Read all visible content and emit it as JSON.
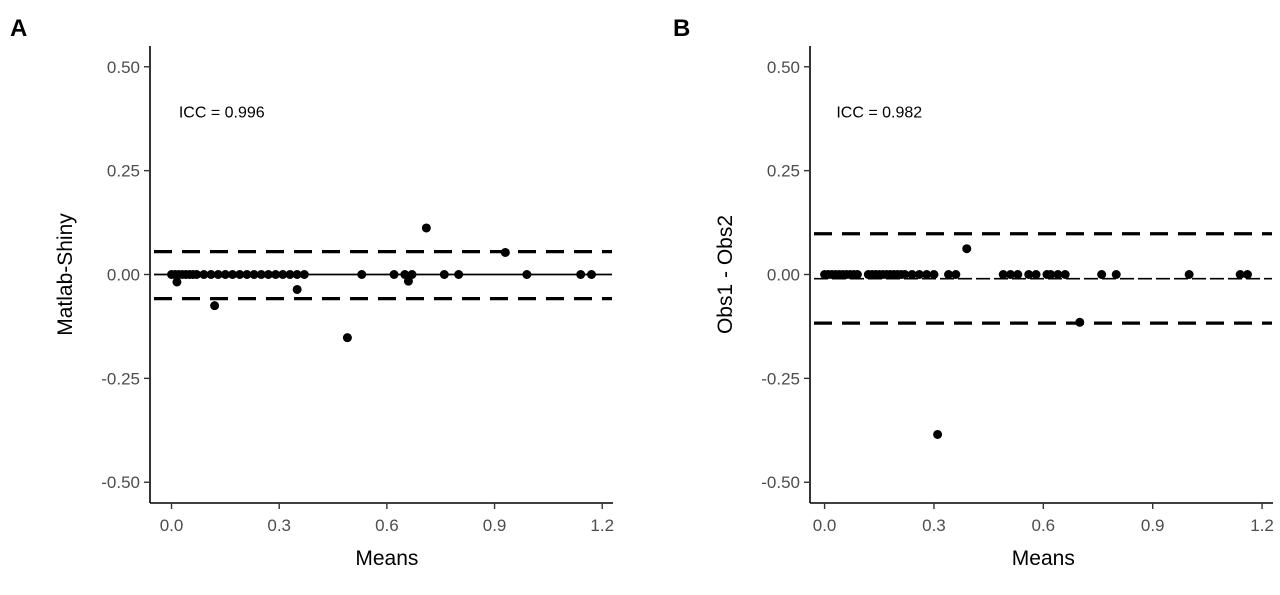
{
  "chart_data": [
    {
      "type": "scatter",
      "panel_label": "A",
      "xlabel": "Means",
      "ylabel": "Matlab-Shiny",
      "xlim": [
        -0.06,
        1.23
      ],
      "ylim": [
        -0.55,
        0.55
      ],
      "xticks": [
        0.0,
        0.3,
        0.6,
        0.9,
        1.2
      ],
      "xtick_labels": [
        "0.0",
        "0.3",
        "0.6",
        "0.9",
        "1.2"
      ],
      "yticks": [
        -0.5,
        -0.25,
        0.0,
        0.25,
        0.5
      ],
      "ytick_labels": [
        "-0.50",
        "-0.25",
        "0.00",
        "0.25",
        "0.50"
      ],
      "annotation": {
        "text": "ICC =  0.996",
        "x": 0.14,
        "y": 0.39
      },
      "reference_lines": [
        {
          "y": 0.055,
          "style": "dashed"
        },
        {
          "y": 0.0,
          "style": "solid"
        },
        {
          "y": -0.058,
          "style": "dashed"
        }
      ],
      "grid": false,
      "points": [
        [
          0.0,
          0.0
        ],
        [
          0.01,
          0.0
        ],
        [
          0.02,
          0.0
        ],
        [
          0.015,
          -0.018
        ],
        [
          0.03,
          0.0
        ],
        [
          0.04,
          0.0
        ],
        [
          0.05,
          0.0
        ],
        [
          0.06,
          0.0
        ],
        [
          0.07,
          0.0
        ],
        [
          0.09,
          0.0
        ],
        [
          0.11,
          0.0
        ],
        [
          0.12,
          -0.075
        ],
        [
          0.13,
          0.0
        ],
        [
          0.15,
          0.0
        ],
        [
          0.17,
          0.0
        ],
        [
          0.19,
          0.0
        ],
        [
          0.21,
          0.0
        ],
        [
          0.23,
          0.0
        ],
        [
          0.25,
          0.0
        ],
        [
          0.27,
          0.0
        ],
        [
          0.29,
          0.0
        ],
        [
          0.31,
          0.0
        ],
        [
          0.33,
          0.0
        ],
        [
          0.35,
          0.0
        ],
        [
          0.37,
          0.0
        ],
        [
          0.35,
          -0.036
        ],
        [
          0.49,
          -0.152
        ],
        [
          0.53,
          0.0
        ],
        [
          0.62,
          0.0
        ],
        [
          0.65,
          0.0
        ],
        [
          0.66,
          -0.016
        ],
        [
          0.67,
          0.0
        ],
        [
          0.71,
          0.112
        ],
        [
          0.76,
          0.0
        ],
        [
          0.8,
          0.0
        ],
        [
          0.93,
          0.053
        ],
        [
          0.99,
          0.0
        ],
        [
          1.14,
          0.0
        ],
        [
          1.17,
          0.0
        ]
      ]
    },
    {
      "type": "scatter",
      "panel_label": "B",
      "xlabel": "Means",
      "ylabel": "Obs1 - Obs2",
      "xlim": [
        -0.04,
        1.23
      ],
      "ylim": [
        -0.55,
        0.55
      ],
      "xticks": [
        0.0,
        0.3,
        0.6,
        0.9,
        1.2
      ],
      "xtick_labels": [
        "0.0",
        "0.3",
        "0.6",
        "0.9",
        "1.2"
      ],
      "yticks": [
        -0.5,
        -0.25,
        0.0,
        0.25,
        0.5
      ],
      "ytick_labels": [
        "-0.50",
        "-0.25",
        "0.00",
        "0.25",
        "0.50"
      ],
      "annotation": {
        "text": "ICC =  0.982",
        "x": 0.15,
        "y": 0.39
      },
      "reference_lines": [
        {
          "y": 0.098,
          "style": "dashed"
        },
        {
          "y": -0.01,
          "style": "thin-dashed"
        },
        {
          "y": -0.117,
          "style": "dashed"
        }
      ],
      "grid": false,
      "points": [
        [
          0.0,
          0.0
        ],
        [
          0.01,
          0.0
        ],
        [
          0.02,
          0.0
        ],
        [
          0.03,
          0.0
        ],
        [
          0.04,
          0.0
        ],
        [
          0.05,
          0.0
        ],
        [
          0.06,
          0.0
        ],
        [
          0.07,
          0.0
        ],
        [
          0.08,
          0.0
        ],
        [
          0.09,
          0.0
        ],
        [
          0.12,
          0.0
        ],
        [
          0.13,
          0.0
        ],
        [
          0.14,
          0.0
        ],
        [
          0.15,
          0.0
        ],
        [
          0.16,
          0.0
        ],
        [
          0.17,
          0.0
        ],
        [
          0.18,
          0.0
        ],
        [
          0.19,
          0.0
        ],
        [
          0.2,
          0.0
        ],
        [
          0.21,
          0.0
        ],
        [
          0.22,
          0.0
        ],
        [
          0.24,
          0.0
        ],
        [
          0.26,
          0.0
        ],
        [
          0.28,
          0.0
        ],
        [
          0.3,
          0.0
        ],
        [
          0.31,
          -0.385
        ],
        [
          0.34,
          0.0
        ],
        [
          0.36,
          0.0
        ],
        [
          0.39,
          0.062
        ],
        [
          0.49,
          0.0
        ],
        [
          0.51,
          0.0
        ],
        [
          0.53,
          0.0
        ],
        [
          0.56,
          0.0
        ],
        [
          0.58,
          0.0
        ],
        [
          0.61,
          0.0
        ],
        [
          0.62,
          0.0
        ],
        [
          0.64,
          0.0
        ],
        [
          0.66,
          0.0
        ],
        [
          0.7,
          -0.115
        ],
        [
          0.76,
          0.0
        ],
        [
          0.8,
          0.0
        ],
        [
          1.0,
          0.0
        ],
        [
          1.14,
          0.0
        ],
        [
          1.16,
          0.0
        ]
      ]
    }
  ],
  "colors": {
    "points": "#000000",
    "axis": "#000000",
    "tick_label": "#4d4d4d"
  }
}
